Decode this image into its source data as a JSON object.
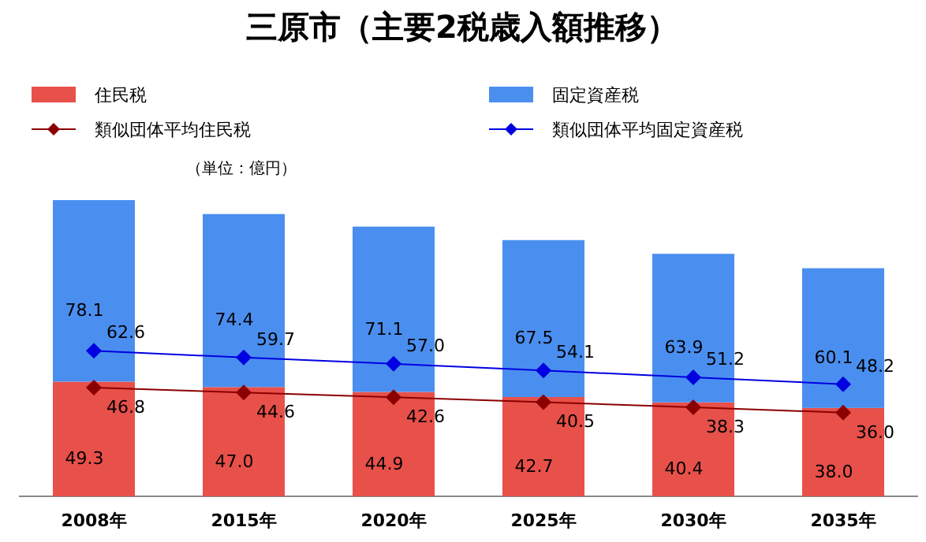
{
  "chart_data": {
    "type": "bar",
    "title": "三原市（主要2税歳入額推移）",
    "stacked": true,
    "legend": "top",
    "marker": "diamond",
    "categories": [
      "2008年",
      "2015年",
      "2020年",
      "2025年",
      "2030年",
      "2035年"
    ],
    "series": [
      {
        "name": "住民税",
        "color": "#e8504a",
        "values": [
          49.3,
          47.0,
          44.9,
          42.7,
          40.4,
          38.0
        ],
        "value_labels": [
          "49.3",
          "47.0",
          "44.9",
          "42.7",
          "40.4",
          "38.0"
        ]
      },
      {
        "name": "固定資産税",
        "color": "#4a8ff0",
        "values": [
          78.1,
          74.4,
          71.1,
          67.5,
          63.9,
          60.1
        ],
        "value_labels": [
          "78.1",
          "74.4",
          "71.1",
          "67.5",
          "63.9",
          "60.1"
        ]
      },
      {
        "name": "類似団体平均住民税",
        "type": "line",
        "color": "#8b0000",
        "values": [
          46.8,
          44.6,
          42.6,
          40.5,
          38.3,
          36.0
        ],
        "value_labels": [
          "46.8",
          "44.6",
          "42.6",
          "40.5",
          "38.3",
          "36.0"
        ]
      },
      {
        "name": "類似団体平均固定資産税",
        "type": "line",
        "color": "#0000e0",
        "values": [
          62.6,
          59.7,
          57.0,
          54.1,
          51.2,
          48.2
        ],
        "value_labels": [
          "62.6",
          "59.7",
          "57.0",
          "54.1",
          "51.2",
          "48.2"
        ]
      }
    ],
    "annotations": [
      "（単位：億円）"
    ]
  }
}
